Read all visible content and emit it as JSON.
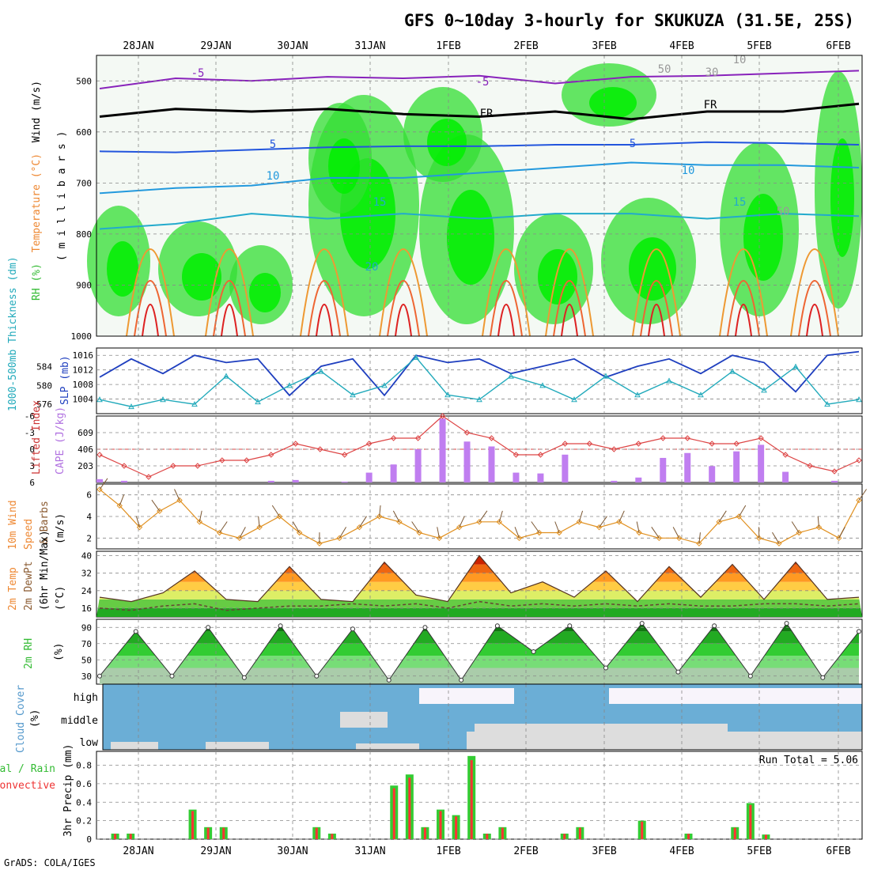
{
  "title": "GFS 0~10day 3-hourly for SKUKUZA (31.5E, 25S)",
  "footer": "GrADS: COLA/IGES",
  "colors": {
    "rh_green": "#33cc33",
    "temp_orange": "#ff8800",
    "cloud_blue": "#6baed6",
    "precip_green": "#33cc33",
    "precip_red": "#ff3333",
    "cape_purple": "#c07ef0",
    "li_red": "#dd4444",
    "slp_blue": "#1f3fbf",
    "thick_cyan": "#22aabb",
    "wind_orange": "#e09020"
  },
  "chart_data": [
    {
      "type": "heatmap",
      "name": "upper-air cross-section",
      "ylabel_parts": [
        "RH (%)",
        "Temperature (°C)",
        "Wind (m/s)"
      ],
      "ylabel_units": "( m i l l i b a r s )",
      "y_ticks": [
        500,
        600,
        700,
        800,
        900,
        1000
      ],
      "ylim": [
        1000,
        450
      ],
      "dates": [
        "28JAN",
        "29JAN",
        "30JAN",
        "31JAN",
        "1FEB",
        "2FEB",
        "3FEB",
        "4FEB",
        "5FEB",
        "6FEB"
      ],
      "contour_labels": [
        "-5",
        "-5",
        "FR",
        "FR",
        "5",
        "5",
        "10",
        "10",
        "15",
        "15",
        "20",
        "10",
        "30",
        "50",
        "50"
      ],
      "isotherms": [
        {
          "label": "-5",
          "p": [
            515,
            495,
            500,
            492,
            495,
            490,
            505,
            492,
            490,
            485,
            480
          ]
        },
        {
          "label": "FR",
          "p": [
            570,
            555,
            560,
            555,
            565,
            570,
            560,
            575,
            560,
            560,
            545
          ]
        },
        {
          "label": "5",
          "p": [
            638,
            640,
            635,
            630,
            628,
            628,
            625,
            625,
            620,
            622,
            625
          ]
        },
        {
          "label": "10",
          "p": [
            720,
            710,
            705,
            690,
            690,
            680,
            670,
            660,
            665,
            665,
            670
          ]
        },
        {
          "label": "15",
          "p": [
            790,
            780,
            760,
            770,
            760,
            770,
            760,
            760,
            770,
            760,
            765
          ]
        }
      ]
    },
    {
      "type": "line",
      "name": "SLP and thickness",
      "ylabel_left": "1000-500mb Thickness (dm)",
      "ylabel_right": "SLP (mb)",
      "thickness_ticks": [
        576,
        580,
        584
      ],
      "slp_ticks": [
        1004,
        1008,
        1012,
        1016
      ],
      "series": [
        {
          "name": "SLP (mb)",
          "values": [
            1010,
            1015,
            1011,
            1016,
            1014,
            1015,
            1005,
            1013,
            1015,
            1005,
            1016,
            1014,
            1015,
            1011,
            1013,
            1015,
            1010,
            1013,
            1015,
            1011,
            1016,
            1014,
            1006,
            1016,
            1017
          ]
        },
        {
          "name": "1000-500mb Thickness (dm)",
          "values": [
            577,
            575.5,
            577,
            576,
            582,
            576.5,
            580,
            583,
            578,
            580,
            586,
            578,
            577,
            582,
            580,
            577,
            582,
            578,
            581,
            578,
            583,
            579,
            584,
            576,
            577
          ]
        }
      ]
    },
    {
      "type": "bar",
      "name": "Lifted Index and CAPE",
      "ylabel_left": "Lifted Index",
      "ylabel_right": "CAPE (J/kg)",
      "li_ticks": [
        -6,
        -3,
        0,
        3,
        6
      ],
      "cape_ticks": [
        203,
        406,
        609
      ],
      "cape_values": [
        40,
        20,
        0,
        0,
        0,
        0,
        0,
        20,
        30,
        0,
        10,
        120,
        220,
        406,
        780,
        500,
        440,
        120,
        110,
        340,
        0,
        20,
        60,
        300,
        360,
        200,
        380,
        460,
        130,
        0,
        20,
        0
      ],
      "li_values": [
        1,
        3,
        5,
        3,
        3,
        2,
        2,
        1,
        -1,
        0,
        1,
        -1,
        -2,
        -2,
        -6,
        -3,
        -2,
        1,
        1,
        -1,
        -1,
        0,
        -1,
        -2,
        -2,
        -1,
        -1,
        -2,
        1,
        3,
        4,
        2
      ]
    },
    {
      "type": "line",
      "name": "10m wind",
      "ylabel_parts": [
        "10m Wind",
        "Speed",
        "& Barbs",
        "(m/s)"
      ],
      "y_ticks": [
        2,
        4,
        6
      ],
      "values": [
        6.5,
        5,
        3,
        4.5,
        5.5,
        3.5,
        2.5,
        2,
        3,
        4,
        2.5,
        1.5,
        2,
        3,
        4,
        3.5,
        2.5,
        2,
        3,
        3.5,
        3.5,
        2,
        2.5,
        2.5,
        3.5,
        3,
        3.5,
        2.5,
        2,
        2,
        1.5,
        3.5,
        4,
        2,
        1.5,
        2.5,
        3,
        2,
        5.5
      ]
    },
    {
      "type": "area",
      "name": "2m temperature and dewpoint",
      "ylabel_parts": [
        "2m Temp",
        "2m DewPt",
        "(6hr Min/Max)",
        "(°C)"
      ],
      "y_ticks": [
        16,
        24,
        32,
        40
      ],
      "temp_values": [
        21,
        19,
        23,
        33,
        20,
        19,
        35,
        20,
        19,
        37,
        22,
        19,
        40,
        23,
        28,
        21,
        33,
        19,
        35,
        21,
        36,
        20,
        37,
        20,
        21
      ],
      "dewpt_values": [
        16,
        15,
        17,
        18,
        15,
        16,
        17,
        17,
        18,
        17,
        18,
        16,
        19,
        17,
        18,
        17,
        18,
        17,
        18,
        17,
        17,
        18,
        18,
        17,
        18
      ]
    },
    {
      "type": "area",
      "name": "2m RH",
      "ylabel_parts": [
        "2m RH",
        "(%)"
      ],
      "y_ticks": [
        30,
        50,
        70,
        90
      ],
      "values": [
        30,
        85,
        30,
        90,
        28,
        92,
        30,
        88,
        25,
        90,
        25,
        92,
        60,
        92,
        40,
        95,
        35,
        92,
        30,
        95,
        28,
        85
      ]
    },
    {
      "type": "bar",
      "name": "cloud cover",
      "ylabel_parts": [
        "Cloud Cover",
        "(%)"
      ],
      "levels": [
        "high",
        "middle",
        "low"
      ]
    },
    {
      "type": "bar",
      "name": "3hr precipitation",
      "ylabel_parts": [
        "Total / Rain",
        "Convective",
        "3hr Precip (mm)"
      ],
      "y_ticks": [
        0,
        0.2,
        0.4,
        0.6,
        0.8
      ],
      "run_total": "Run Total = 5.06",
      "values": [
        0,
        0.06,
        0.06,
        0,
        0,
        0,
        0.32,
        0.13,
        0.13,
        0,
        0,
        0,
        0,
        0,
        0.13,
        0.06,
        0,
        0,
        0,
        0.58,
        0.7,
        0.13,
        0.32,
        0.26,
        0.9,
        0.06,
        0.13,
        0,
        0,
        0,
        0.06,
        0.13,
        0,
        0,
        0,
        0.2,
        0,
        0,
        0.06,
        0,
        0,
        0.13,
        0.39,
        0.05,
        0,
        0,
        0,
        0,
        0,
        0
      ]
    }
  ]
}
